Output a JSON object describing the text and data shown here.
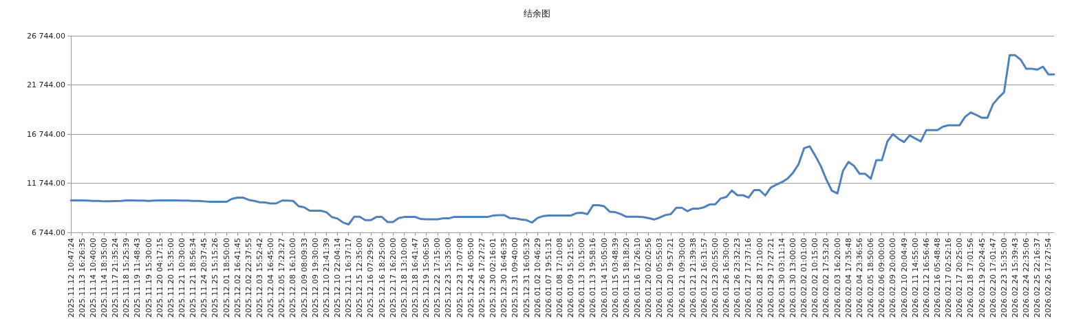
{
  "chart_data": {
    "type": "line",
    "title": "结余图",
    "categories": [
      "2025.11.12 10:47:24",
      null,
      "2025.11.13 16:26:35",
      null,
      "2025.11.14 10:40:00",
      null,
      "2025.11.14 18:35:00",
      null,
      "2025.11.17 21:35:24",
      null,
      "2025.11.18 15:25:39",
      null,
      "2025.11.19 11:48:43",
      null,
      "2025.11.19 15:30:00",
      null,
      "2025.11.20 04:17:15",
      null,
      "2025.11.20 15:35:00",
      null,
      "2025.11.21 10:30:00",
      null,
      "2025.11.21 18:56:34",
      null,
      "2025.11.24 20:37:45",
      null,
      "2025.11.25 15:15:26",
      null,
      "2025.12.01 18:50:00",
      null,
      "2025.12.02 16:41:45",
      null,
      "2025.12.02 22:37:55",
      null,
      "2025.12.03 15:52:42",
      null,
      "2025.12.04 16:45:00",
      null,
      "2025.12.05 17:23:27",
      null,
      "2025.12.08 16:10:00",
      null,
      "2025.12.09 08:09:33",
      null,
      "2025.12.09 19:30:00",
      null,
      "2025.12.10 21:41:39",
      null,
      "2025.12.10 22:04:14",
      null,
      "2025.12.11 16:37:17",
      null,
      "2025.12.15 12:35:00",
      null,
      "2025.12.16 07:29:50",
      null,
      "2025.12.16 18:25:00",
      null,
      "2025.12.17 16:20:00",
      null,
      "2025.12.18 13:10:00",
      null,
      "2025.12.18 16:41:47",
      null,
      "2025.12.19 15:06:50",
      null,
      "2025.12.22 17:15:00",
      null,
      "2025.12.23 15:35:00",
      null,
      "2025.12.23 17:07:08",
      null,
      "2025.12.24 16:05:00",
      null,
      "2025.12.26 17:27:27",
      null,
      "2025.12.30 02:16:01",
      null,
      "2025.12.30 16:46:35",
      null,
      "2025.12.31 09:40:00",
      null,
      "2025.12.31 16:05:32",
      null,
      "2026.01.02 10:46:29",
      null,
      "2026.01.07 19:51:31",
      null,
      "2026.01.08 17:10:08",
      null,
      "2026.01.09 15:21:55",
      null,
      "2026.01.13 10:15:00",
      null,
      "2026.01.13 19:58:16",
      null,
      "2026.01.14 15:05:00",
      null,
      "2026.01.15 03:48:39",
      null,
      "2026.01.15 18:18:20",
      null,
      "2026.01.16 17:26:10",
      null,
      "2026.01.20 02:02:56",
      null,
      "2026.01.20 05:55:03",
      null,
      "2026.01.20 19:57:21",
      null,
      "2026.01.21 09:30:00",
      null,
      "2026.01.21 21:39:38",
      null,
      "2026.01.22 16:31:57",
      null,
      "2026.01.23 20:55:00",
      null,
      "2026.01.26 16:30:00",
      null,
      "2026.01.26 23:32:23",
      null,
      "2026.01.27 17:37:16",
      null,
      "2026.01.28 17:10:00",
      null,
      "2026.01.29 17:27:21",
      null,
      "2026.01.30 03:11:14",
      null,
      "2026.01.30 13:00:00",
      null,
      "2026.02.02 01:01:00",
      null,
      "2026.02.02 10:15:00",
      null,
      "2026.02.02 17:53:20",
      null,
      "2026.02.03 16:20:00",
      null,
      "2026.02.04 17:35:48",
      null,
      "2026.02.04 23:36:56",
      null,
      "2026.02.05 18:50:06",
      null,
      "2026.02.06 09:00:00",
      null,
      "2026.02.09 20:00:00",
      null,
      "2026.02.10 20:04:49",
      null,
      "2026.02.11 14:55:00",
      null,
      "2026.02.12 16:56:46",
      null,
      "2026.02.16 05:48:48",
      null,
      "2026.02.17 02:52:16",
      null,
      "2026.02.17 20:25:00",
      null,
      "2026.02.18 17:01:56",
      null,
      "2026.02.19 20:24:45",
      null,
      "2026.02.20 17:01:47",
      null,
      "2026.02.23 15:35:00",
      null,
      "2026.02.24 15:39:43",
      null,
      "2026.02.24 22:35:06",
      null,
      "2026.02.25 22:16:37",
      null,
      "2026.02.26 17:27:54",
      null
    ],
    "series": [
      {
        "color": "#4f81bd",
        "values": [
          10000,
          10000,
          10000,
          9980,
          9950,
          9950,
          9900,
          9900,
          9920,
          9950,
          10000,
          10000,
          9980,
          9980,
          9950,
          9980,
          10000,
          10000,
          10000,
          10000,
          9980,
          9980,
          9950,
          9950,
          9900,
          9850,
          9850,
          9850,
          9850,
          10150,
          10280,
          10280,
          10050,
          9950,
          9800,
          9780,
          9680,
          9700,
          9980,
          9980,
          9950,
          9400,
          9300,
          8950,
          8950,
          8950,
          8800,
          8300,
          8150,
          7750,
          7550,
          8330,
          8330,
          7980,
          7980,
          8310,
          8310,
          7800,
          7800,
          8200,
          8310,
          8310,
          8310,
          8100,
          8080,
          8080,
          8080,
          8170,
          8170,
          8310,
          8310,
          8310,
          8310,
          8310,
          8310,
          8310,
          8450,
          8500,
          8500,
          8200,
          8170,
          8050,
          8000,
          7740,
          8200,
          8400,
          8450,
          8450,
          8450,
          8450,
          8450,
          8700,
          8740,
          8600,
          9500,
          9500,
          9400,
          8850,
          8800,
          8600,
          8330,
          8330,
          8330,
          8300,
          8200,
          8050,
          8250,
          8500,
          8600,
          9250,
          9250,
          8900,
          9165,
          9165,
          9300,
          9590,
          9590,
          10200,
          10350,
          11000,
          10520,
          10520,
          10280,
          11040,
          11040,
          10500,
          11300,
          11600,
          11850,
          12200,
          12800,
          13670,
          15300,
          15500,
          14550,
          13500,
          12130,
          10990,
          10710,
          13000,
          13910,
          13500,
          12700,
          12700,
          12200,
          14080,
          14080,
          16000,
          16730,
          16260,
          15930,
          16610,
          16300,
          16000,
          17140,
          17140,
          17140,
          17500,
          17640,
          17640,
          17640,
          18500,
          18940,
          18700,
          18400,
          18400,
          19770,
          20440,
          21000,
          24760,
          24760,
          24300,
          23380,
          23380,
          23300,
          23600,
          22810,
          22810
        ]
      }
    ],
    "ylim": [
      6744,
      26744
    ],
    "yticks": [
      {
        "value": 6744,
        "label": "6 744.00"
      },
      {
        "value": 11744,
        "label": "11 744.00"
      },
      {
        "value": 16744,
        "label": "16 744.00"
      },
      {
        "value": 21744,
        "label": "21 744.00"
      },
      {
        "value": 26744,
        "label": "26 744.00"
      }
    ],
    "grid": "y",
    "marker": "none",
    "line_style": "solid"
  }
}
